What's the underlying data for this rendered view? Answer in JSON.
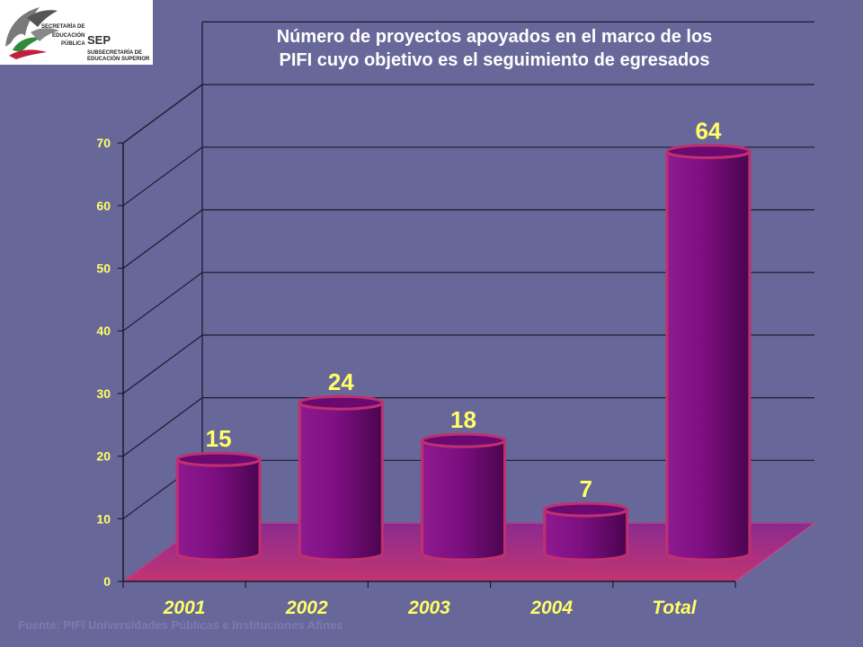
{
  "header": {
    "title_line1": "Número de proyectos apoyados en el marco de los",
    "title_line2": "PIFI cuyo objetivo es el seguimiento de egresados"
  },
  "logo": {
    "line1": "SECRETARÍA DE",
    "line2": "EDUCACIÓN",
    "line3": "PÚBLICA",
    "sep": "SEP",
    "sub1": "SUBSECRETARÍA DE",
    "sub2": "EDUCACIÓN SUPERIOR"
  },
  "footer": {
    "source": "Fuente: PIFI Universidades Públicas e Instituciones Afines"
  },
  "chart_data": {
    "type": "bar",
    "categories": [
      "2001",
      "2002",
      "2003",
      "2004",
      "Total"
    ],
    "values": [
      15,
      24,
      18,
      7,
      64
    ],
    "value_labels": [
      "15",
      "24",
      "18",
      "7",
      "64"
    ],
    "title": "Número de proyectos apoyados en el marco de los PIFI cuyo objetivo es el seguimiento de egresados",
    "ylim": [
      0,
      70
    ],
    "yticks": [
      "0",
      "10",
      "20",
      "30",
      "40",
      "50",
      "60",
      "70"
    ],
    "grid": true,
    "colors": {
      "bar": "#7d0f80",
      "bar_dark": "#4a0450",
      "bar_edge": "#c03070",
      "floor": "#b0307a",
      "grid": "#1a1a2a",
      "labels": "#ffff66"
    }
  }
}
